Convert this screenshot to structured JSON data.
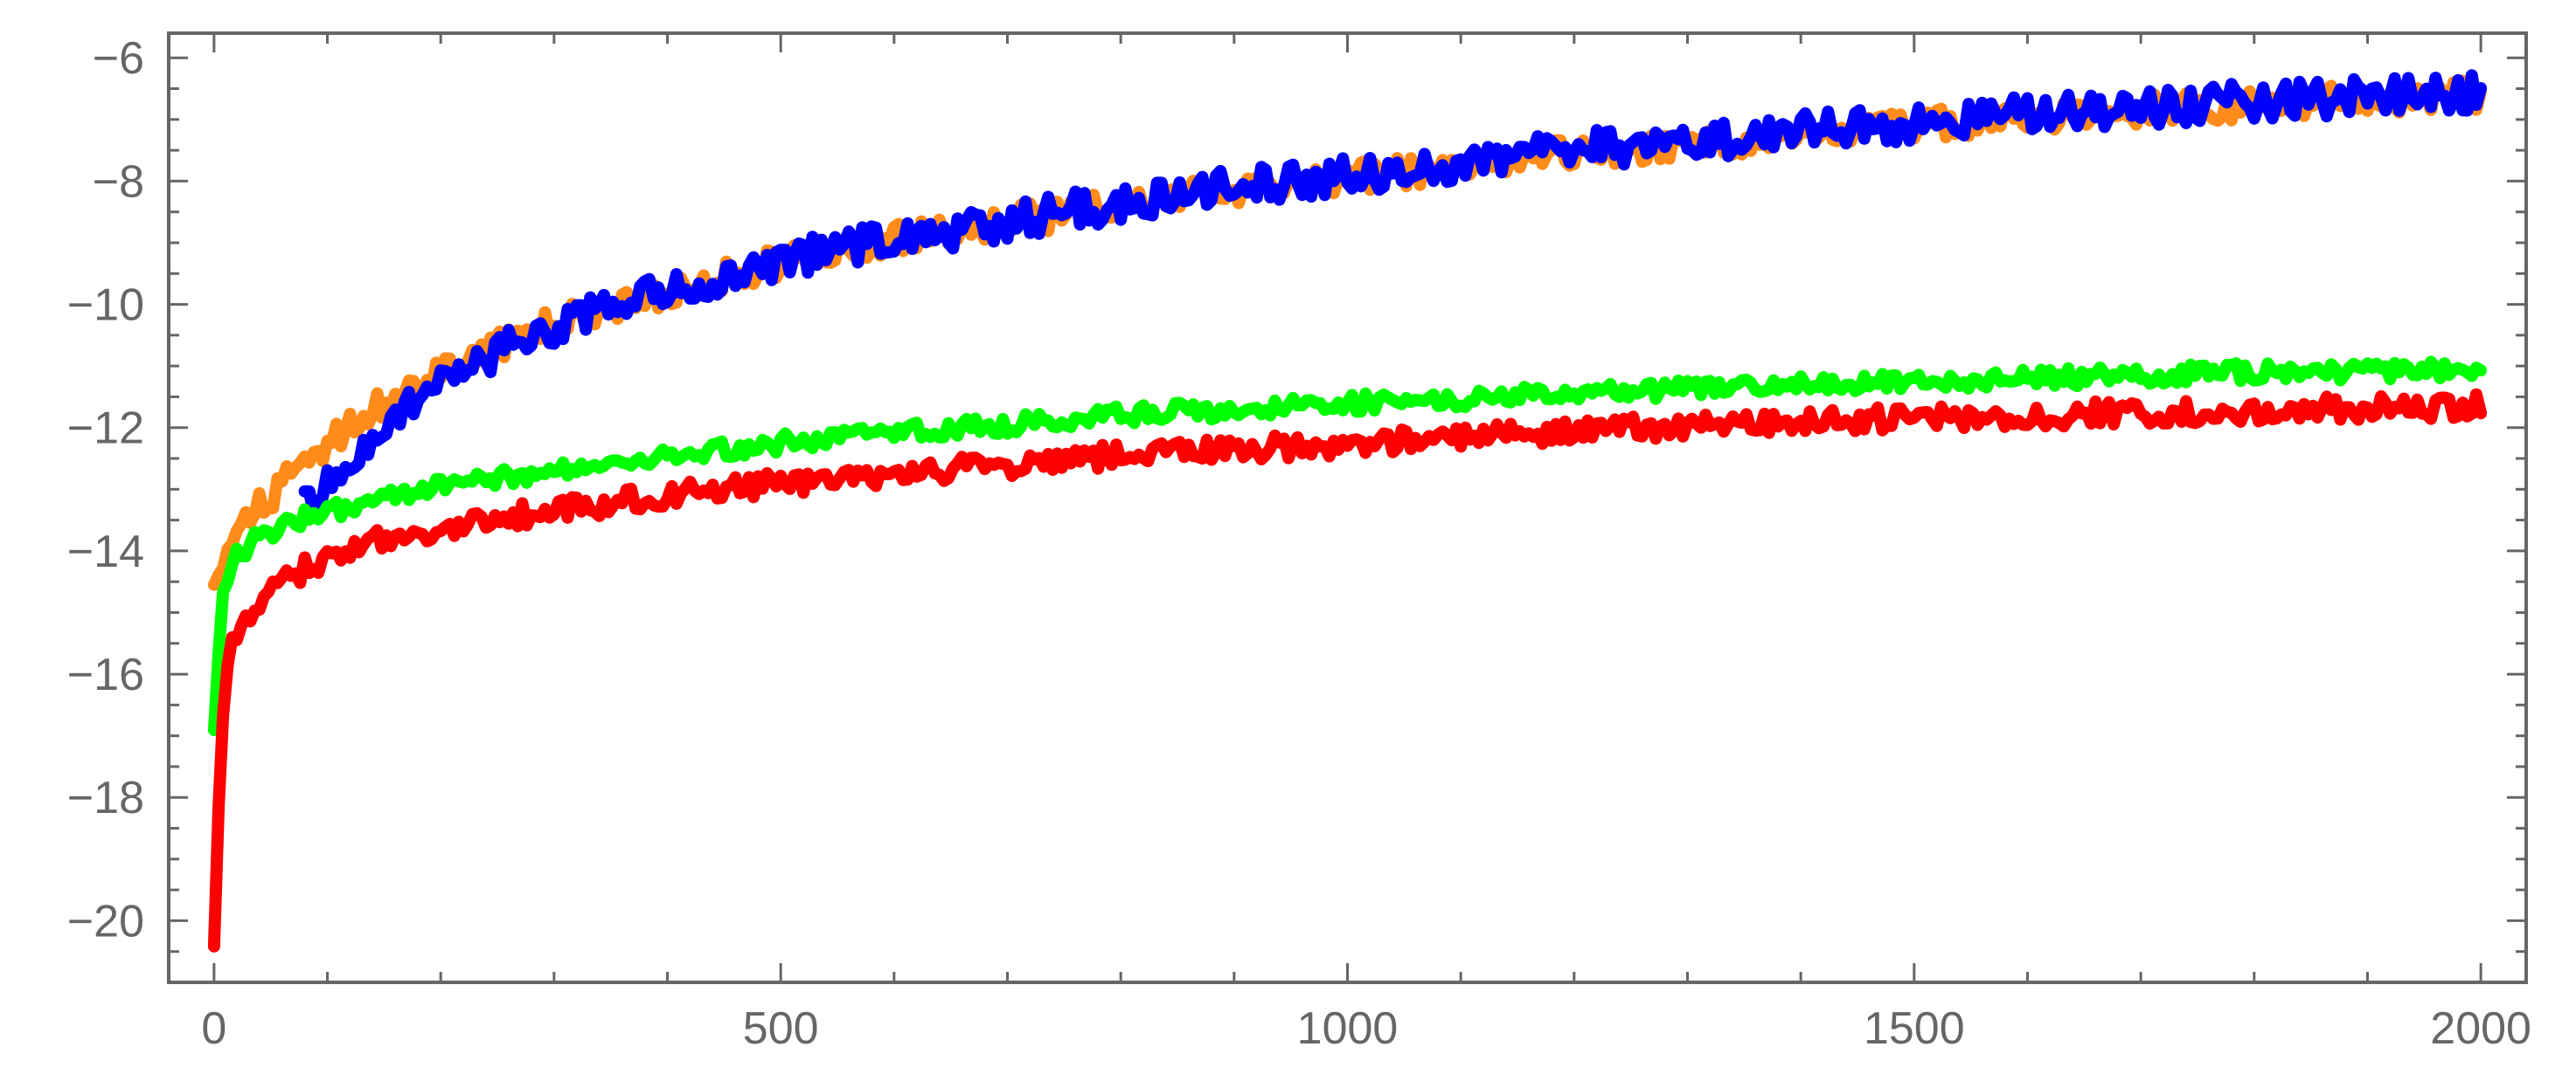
{
  "chart_data": {
    "type": "line",
    "title": "",
    "xlabel": "",
    "ylabel": "",
    "xlim": [
      -40,
      2040
    ],
    "ylim": [
      -21,
      -5.6
    ],
    "x_ticks": [
      0,
      500,
      1000,
      1500,
      2000
    ],
    "x_tick_labels": [
      "0",
      "500",
      "1000",
      "1500",
      "2000"
    ],
    "y_ticks": [
      -20,
      -18,
      -16,
      -14,
      -12,
      -10,
      -8,
      -6
    ],
    "y_tick_labels": [
      "−20",
      "−18",
      "−16",
      "−14",
      "−12",
      "−10",
      "−8",
      "−6"
    ],
    "grid": false,
    "legend": "none",
    "series": [
      {
        "color": "#ff8c1a",
        "x": [
          0,
          10,
          20,
          40,
          60,
          80,
          100,
          150,
          200,
          250,
          300,
          400,
          500,
          600,
          700,
          800,
          900,
          1000,
          1200,
          1400,
          1600,
          1800,
          2000
        ],
        "y": [
          -14.3,
          -14.0,
          -13.7,
          -13.3,
          -12.9,
          -12.6,
          -12.3,
          -11.6,
          -11.1,
          -10.7,
          -10.3,
          -9.8,
          -9.3,
          -8.95,
          -8.65,
          -8.4,
          -8.15,
          -7.95,
          -7.55,
          -7.25,
          -6.95,
          -6.75,
          -6.6
        ],
        "amplitude": 0.25
      },
      {
        "color": "#0000ff",
        "x": [
          80,
          100,
          150,
          200,
          250,
          300,
          400,
          500,
          600,
          700,
          800,
          900,
          1000,
          1200,
          1400,
          1600,
          1800,
          2000
        ],
        "y": [
          -13.3,
          -12.9,
          -12.0,
          -11.3,
          -10.8,
          -10.35,
          -9.8,
          -9.3,
          -8.95,
          -8.65,
          -8.35,
          -8.1,
          -7.9,
          -7.5,
          -7.2,
          -6.9,
          -6.7,
          -6.55
        ],
        "amplitude": 0.3
      },
      {
        "color": "#00ff00",
        "x": [
          0,
          5,
          10,
          20,
          30,
          40,
          60,
          80,
          100,
          150,
          200,
          300,
          400,
          500,
          600,
          700,
          800,
          900,
          1000,
          1200,
          1400,
          1600,
          1800,
          2000
        ],
        "y": [
          -17.0,
          -15.2,
          -14.5,
          -14.1,
          -13.9,
          -13.8,
          -13.6,
          -13.45,
          -13.35,
          -13.15,
          -12.95,
          -12.7,
          -12.45,
          -12.25,
          -12.1,
          -11.95,
          -11.8,
          -11.7,
          -11.6,
          -11.45,
          -11.3,
          -11.2,
          -11.1,
          -11.05
        ],
        "amplitude": 0.15
      },
      {
        "color": "#ff0000",
        "x": [
          0,
          5,
          10,
          20,
          30,
          40,
          60,
          80,
          100,
          150,
          200,
          300,
          400,
          500,
          600,
          700,
          800,
          900,
          1000,
          1200,
          1400,
          1600,
          1800,
          2000
        ],
        "y": [
          -20.3,
          -17.5,
          -16.0,
          -15.3,
          -15.0,
          -14.8,
          -14.5,
          -14.3,
          -14.1,
          -13.8,
          -13.6,
          -13.35,
          -13.1,
          -12.9,
          -12.75,
          -12.6,
          -12.45,
          -12.35,
          -12.25,
          -12.05,
          -11.9,
          -11.8,
          -11.7,
          -11.65
        ],
        "amplitude": 0.2
      }
    ]
  }
}
